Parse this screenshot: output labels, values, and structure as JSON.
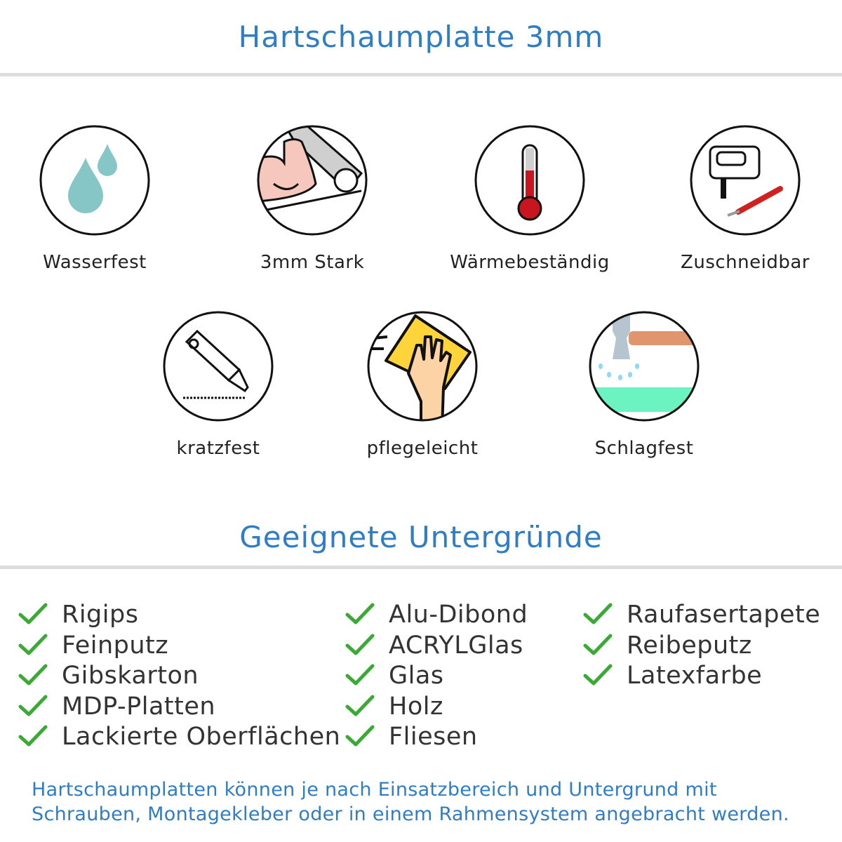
{
  "header": {
    "title": "Hartschaumplatte 3mm"
  },
  "features": [
    {
      "label": "Wasserfest",
      "icon": "water-drops-icon"
    },
    {
      "label": "3mm Stark",
      "icon": "strong-arm-icon"
    },
    {
      "label": "Wärmebeständig",
      "icon": "thermometer-icon"
    },
    {
      "label": "Zuschneidbar",
      "icon": "jigsaw-knife-icon"
    },
    {
      "label": "kratzfest",
      "icon": "cutter-knife-icon"
    },
    {
      "label": "pflegeleicht",
      "icon": "hand-sponge-icon"
    },
    {
      "label": "Schlagfest",
      "icon": "hammer-icon"
    }
  ],
  "surfaces": {
    "title": "Geeignete Untergründe",
    "check_color": "#3aaa35",
    "columns": [
      [
        "Rigips",
        "Feinputz",
        "Gibskarton",
        "MDP-Platten",
        "Lackierte Oberflächen"
      ],
      [
        "Alu-Dibond",
        "ACRYLGlas",
        "Glas",
        "Holz",
        "Fliesen"
      ],
      [
        "Raufasertapete",
        "Reibeputz",
        "Latexfarbe"
      ]
    ]
  },
  "footer": {
    "line1": "Hartschaumplatten können je nach Einsatzbereich und Untergrund mit",
    "line2": "Schrauben, Montagekleber oder in einem Rahmensystem angebracht werden."
  }
}
